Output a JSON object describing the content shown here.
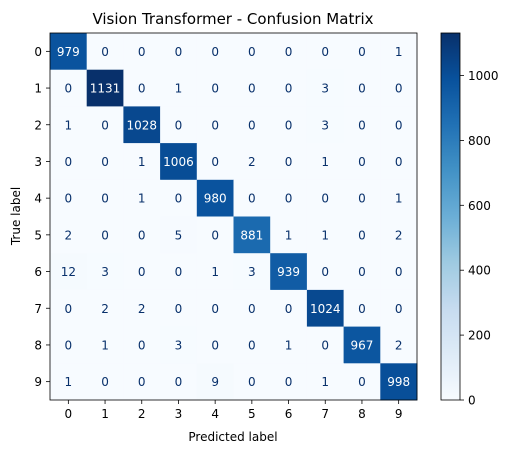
{
  "chart_data": {
    "type": "heatmap",
    "title": "Vision Transformer - Confusion Matrix",
    "xlabel": "Predicted label",
    "ylabel": "True label",
    "x_categories": [
      "0",
      "1",
      "2",
      "3",
      "4",
      "5",
      "6",
      "7",
      "8",
      "9"
    ],
    "y_categories": [
      "0",
      "1",
      "2",
      "3",
      "4",
      "5",
      "6",
      "7",
      "8",
      "9"
    ],
    "matrix": [
      [
        979,
        0,
        0,
        0,
        0,
        0,
        0,
        0,
        0,
        1
      ],
      [
        0,
        1131,
        0,
        1,
        0,
        0,
        0,
        3,
        0,
        0
      ],
      [
        1,
        0,
        1028,
        0,
        0,
        0,
        0,
        3,
        0,
        0
      ],
      [
        0,
        0,
        1,
        1006,
        0,
        2,
        0,
        1,
        0,
        0
      ],
      [
        0,
        0,
        1,
        0,
        980,
        0,
        0,
        0,
        0,
        1
      ],
      [
        2,
        0,
        0,
        5,
        0,
        881,
        1,
        1,
        0,
        2
      ],
      [
        12,
        3,
        0,
        0,
        1,
        3,
        939,
        0,
        0,
        0
      ],
      [
        0,
        2,
        2,
        0,
        0,
        0,
        0,
        1024,
        0,
        0
      ],
      [
        0,
        1,
        0,
        3,
        0,
        0,
        1,
        0,
        967,
        2
      ],
      [
        1,
        0,
        0,
        0,
        9,
        0,
        0,
        1,
        0,
        998
      ]
    ],
    "colormap": "Blues",
    "color_range": [
      0,
      1131
    ],
    "colorbar_ticks": [
      0,
      200,
      400,
      600,
      800,
      1000
    ],
    "colorbar_tick_labels": [
      "0",
      "200",
      "400",
      "600",
      "800",
      "1000"
    ]
  }
}
